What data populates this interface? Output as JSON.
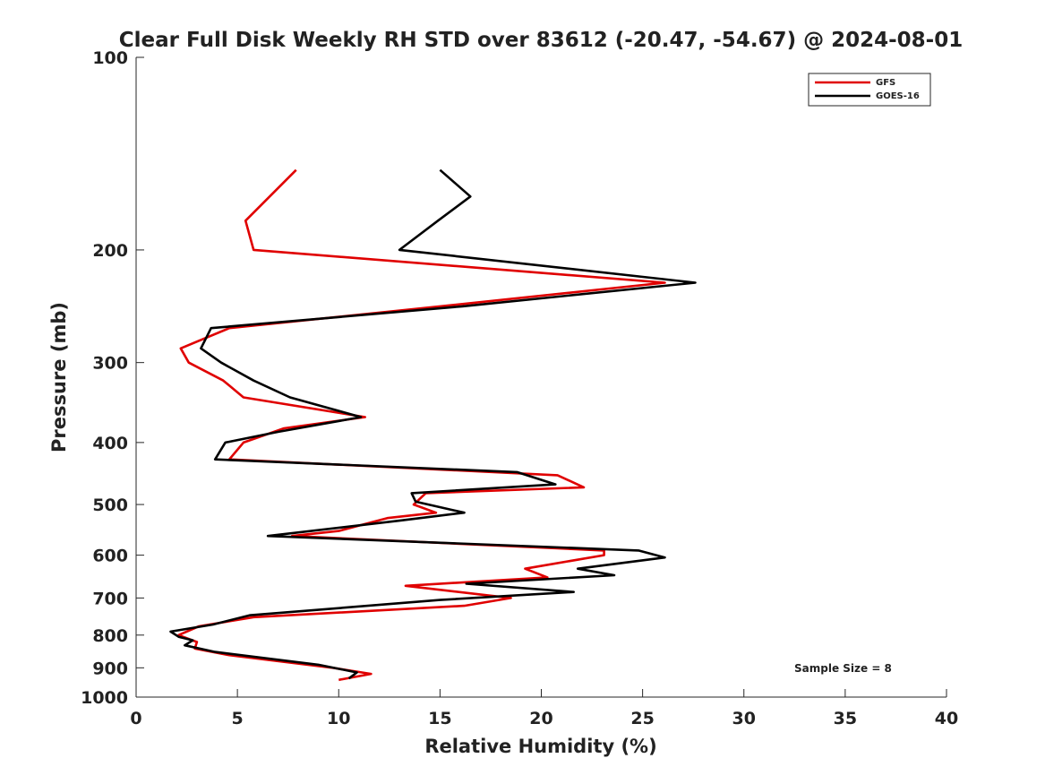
{
  "chart_data": {
    "type": "line",
    "title": "Clear Full Disk Weekly RH STD over 83612 (-20.47, -54.67) @ 2024-08-01",
    "xlabel": "Relative Humidity (%)",
    "ylabel": "Pressure (mb)",
    "xlim": [
      0,
      40
    ],
    "ylim": [
      100,
      1000
    ],
    "y_scale": "log",
    "y_reversed": true,
    "x_ticks": [
      0,
      5,
      10,
      15,
      20,
      25,
      30,
      35,
      40
    ],
    "y_ticks": [
      100,
      200,
      300,
      400,
      500,
      600,
      700,
      800,
      900,
      1000
    ],
    "grid": false,
    "legend_position": "top-right",
    "annotation": "Sample Size = 8",
    "series": [
      {
        "name": "GFS",
        "color": "#e00000",
        "points": [
          [
            7.9,
            150
          ],
          [
            5.4,
            180
          ],
          [
            5.8,
            200
          ],
          [
            26.1,
            225
          ],
          [
            15.0,
            245
          ],
          [
            4.6,
            265
          ],
          [
            2.2,
            285
          ],
          [
            2.6,
            300
          ],
          [
            4.3,
            320
          ],
          [
            5.3,
            340
          ],
          [
            11.3,
            365
          ],
          [
            7.3,
            380
          ],
          [
            5.3,
            400
          ],
          [
            4.6,
            425
          ],
          [
            20.8,
            450
          ],
          [
            22.1,
            470
          ],
          [
            14.3,
            480
          ],
          [
            13.7,
            500
          ],
          [
            14.8,
            515
          ],
          [
            12.4,
            525
          ],
          [
            10.0,
            550
          ],
          [
            7.7,
            560
          ],
          [
            23.1,
            590
          ],
          [
            23.1,
            600
          ],
          [
            19.2,
            630
          ],
          [
            20.3,
            650
          ],
          [
            13.3,
            670
          ],
          [
            18.5,
            700
          ],
          [
            16.2,
            720
          ],
          [
            5.8,
            750
          ],
          [
            3.1,
            775
          ],
          [
            2.1,
            800
          ],
          [
            3.0,
            820
          ],
          [
            2.9,
            840
          ],
          [
            4.6,
            860
          ],
          [
            9.7,
            900
          ],
          [
            11.6,
            920
          ],
          [
            10.0,
            940
          ]
        ]
      },
      {
        "name": "GOES-16",
        "color": "#000000",
        "points": [
          [
            15.0,
            150
          ],
          [
            16.5,
            165
          ],
          [
            14.9,
            180
          ],
          [
            13.0,
            200
          ],
          [
            27.6,
            225
          ],
          [
            16.1,
            245
          ],
          [
            3.7,
            265
          ],
          [
            3.2,
            285
          ],
          [
            4.2,
            300
          ],
          [
            5.8,
            320
          ],
          [
            7.6,
            340
          ],
          [
            11.1,
            365
          ],
          [
            7.0,
            385
          ],
          [
            4.4,
            400
          ],
          [
            3.9,
            425
          ],
          [
            18.8,
            445
          ],
          [
            20.7,
            465
          ],
          [
            13.6,
            480
          ],
          [
            13.8,
            495
          ],
          [
            16.2,
            515
          ],
          [
            13.0,
            530
          ],
          [
            6.5,
            560
          ],
          [
            24.8,
            590
          ],
          [
            26.1,
            605
          ],
          [
            21.8,
            630
          ],
          [
            23.6,
            645
          ],
          [
            16.3,
            665
          ],
          [
            21.6,
            685
          ],
          [
            15.0,
            705
          ],
          [
            5.6,
            745
          ],
          [
            3.8,
            770
          ],
          [
            1.7,
            790
          ],
          [
            2.1,
            805
          ],
          [
            2.8,
            815
          ],
          [
            2.4,
            830
          ],
          [
            3.9,
            850
          ],
          [
            9.0,
            890
          ],
          [
            10.9,
            915
          ],
          [
            10.5,
            935
          ]
        ]
      }
    ]
  }
}
